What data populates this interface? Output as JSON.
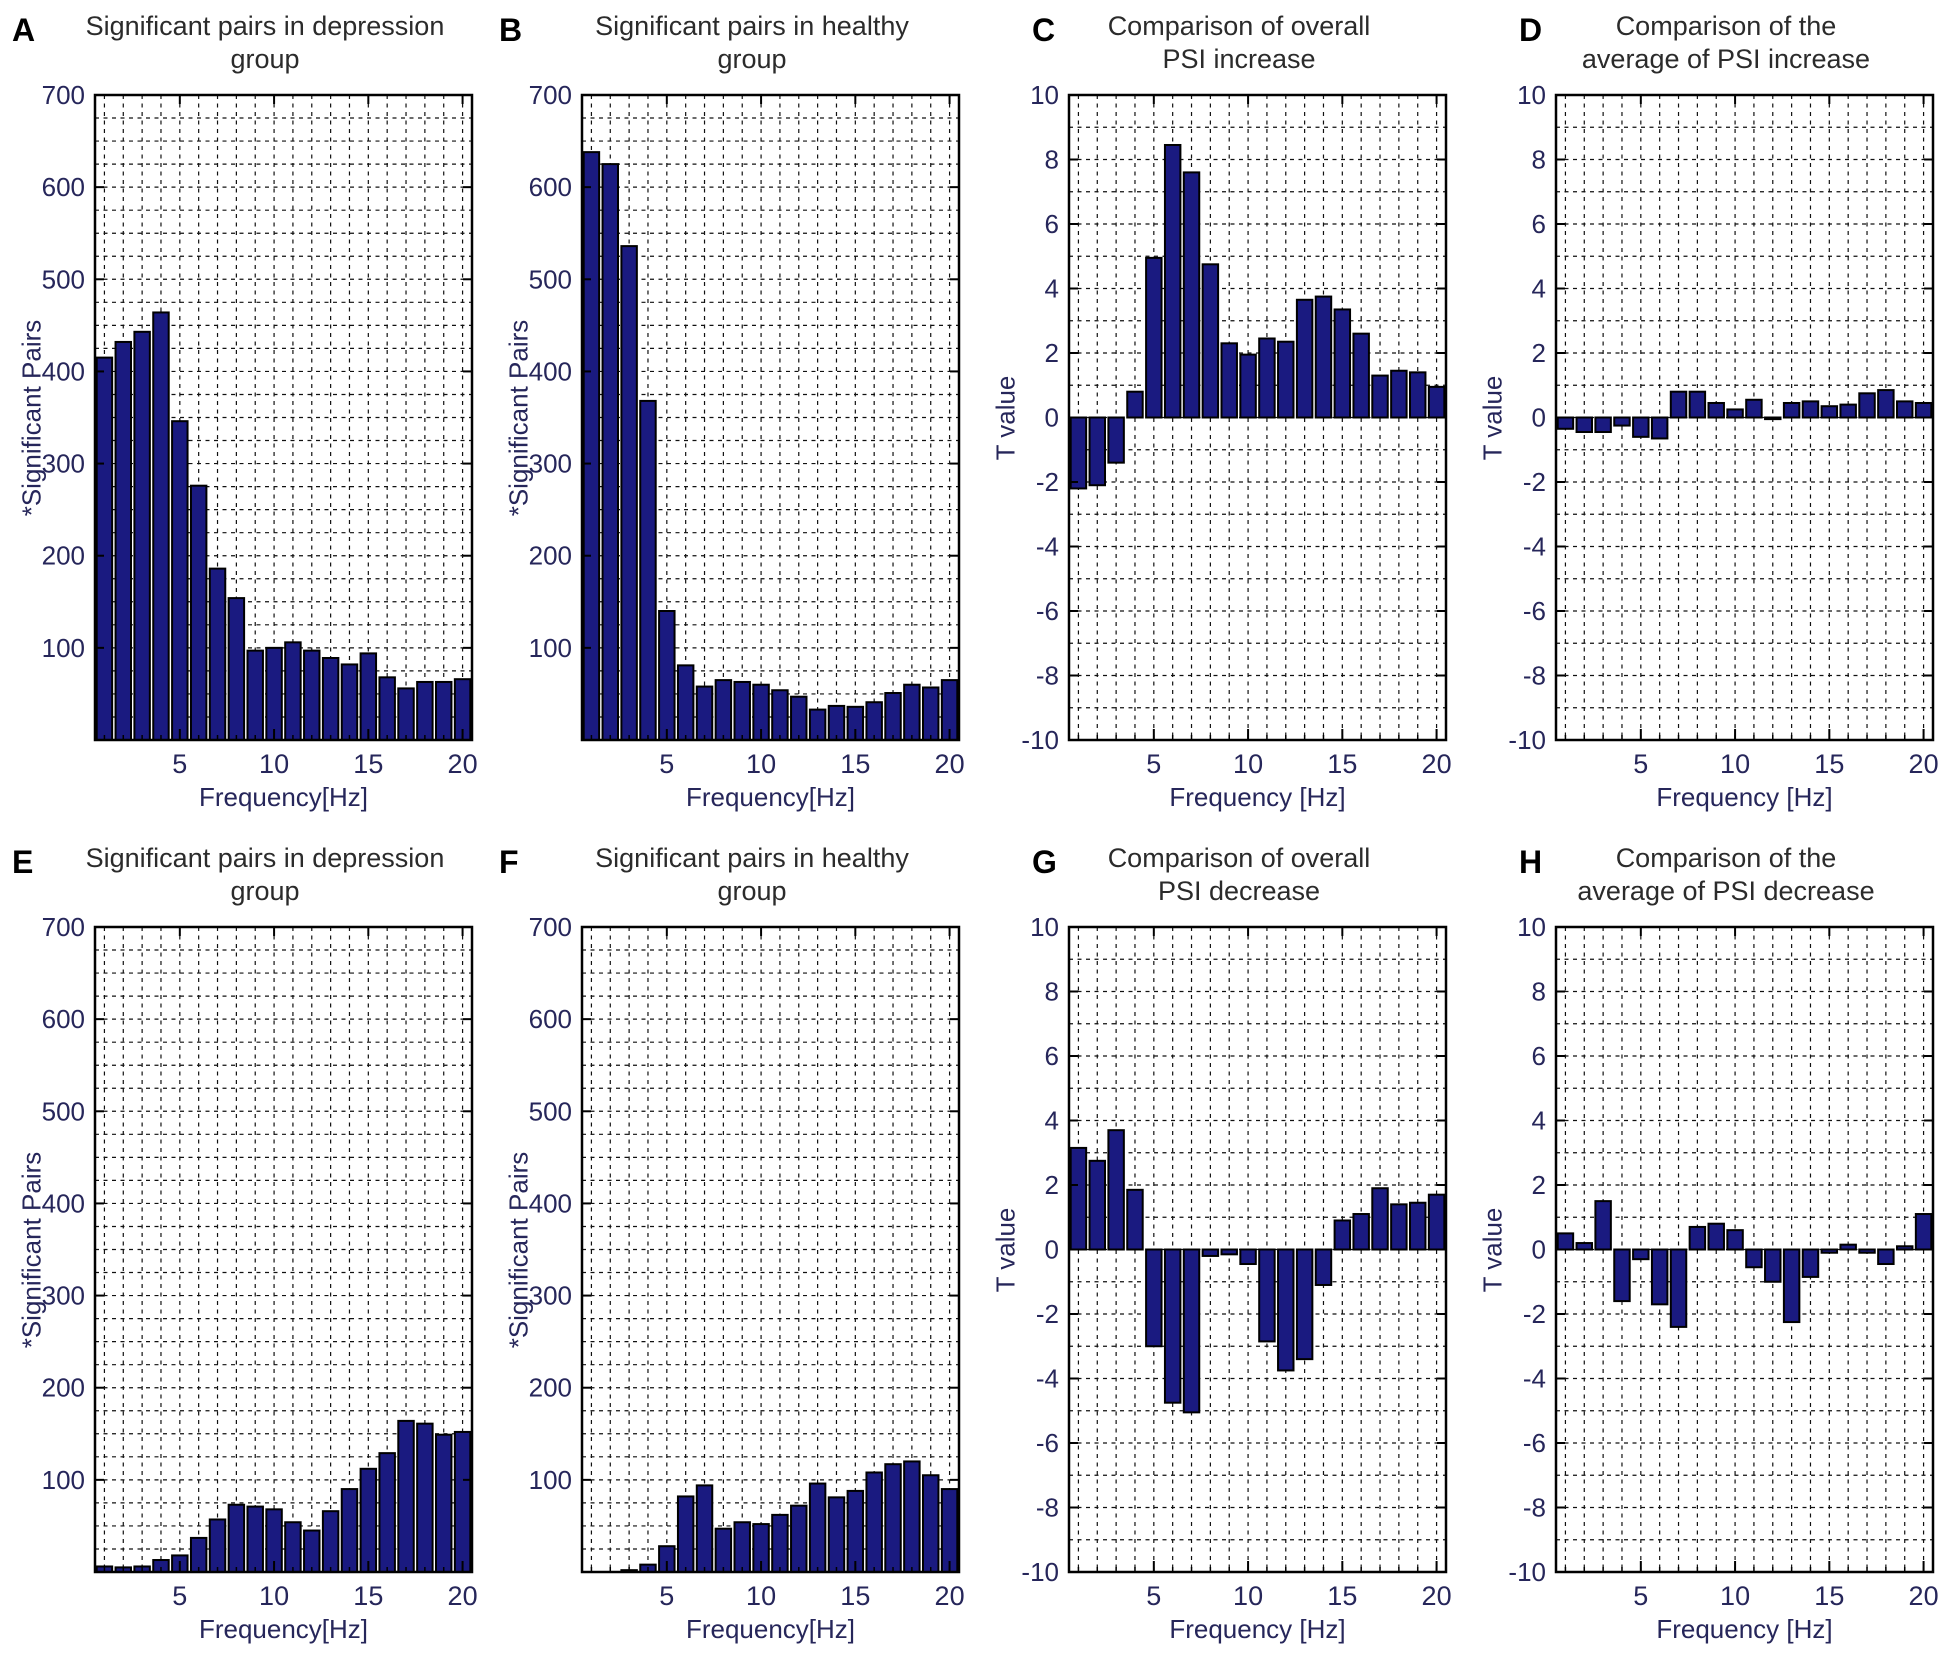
{
  "style": {
    "background": "#ffffff",
    "bar_fill": "#1a1a80",
    "bar_edge": "#000000",
    "grid_color": "#111111",
    "axis_color": "#000000",
    "tick_label_color": "#26265a",
    "title_color": "#2b2b2b",
    "letter_color": "#000000"
  },
  "chart_data": [
    {
      "letter": "A",
      "title_line1": "Significant pairs in depression",
      "title_line2": "group",
      "ylabel": "*Significant Pairs",
      "xlabel": "Frequency[Hz]",
      "type": "bar",
      "x": [
        1,
        2,
        3,
        4,
        5,
        6,
        7,
        8,
        9,
        10,
        11,
        12,
        13,
        14,
        15,
        16,
        17,
        18,
        19,
        20
      ],
      "values": [
        415,
        432,
        443,
        464,
        346,
        276,
        186,
        154,
        97,
        100,
        106,
        97,
        89,
        82,
        94,
        68,
        56,
        63,
        63,
        66
      ],
      "ylim": [
        0,
        700
      ],
      "yticks": [
        100,
        200,
        300,
        400,
        500,
        600,
        700
      ],
      "xticks": [
        5,
        10,
        15,
        20
      ],
      "grid_step": 25,
      "grid": "on",
      "legend": "none"
    },
    {
      "letter": "B",
      "title_line1": "Significant pairs in healthy",
      "title_line2": "group",
      "ylabel": "*Significant Pairs",
      "xlabel": "Frequency[Hz]",
      "type": "bar",
      "x": [
        1,
        2,
        3,
        4,
        5,
        6,
        7,
        8,
        9,
        10,
        11,
        12,
        13,
        14,
        15,
        16,
        17,
        18,
        19,
        20
      ],
      "values": [
        638,
        625,
        536,
        368,
        140,
        81,
        58,
        65,
        63,
        60,
        54,
        47,
        33,
        37,
        36,
        41,
        51,
        60,
        57,
        65
      ],
      "ylim": [
        0,
        700
      ],
      "yticks": [
        100,
        200,
        300,
        400,
        500,
        600,
        700
      ],
      "xticks": [
        5,
        10,
        15,
        20
      ],
      "grid_step": 25,
      "grid": "on",
      "legend": "none"
    },
    {
      "letter": "C",
      "title_line1": "Comparison of overall",
      "title_line2": "PSI increase",
      "ylabel": "T value",
      "xlabel": "Frequency [Hz]",
      "type": "bar",
      "x": [
        1,
        2,
        3,
        4,
        5,
        6,
        7,
        8,
        9,
        10,
        11,
        12,
        13,
        14,
        15,
        16,
        17,
        18,
        19,
        20
      ],
      "values": [
        -2.2,
        -2.1,
        -1.4,
        0.8,
        4.95,
        8.45,
        7.6,
        4.75,
        2.3,
        1.95,
        2.45,
        2.35,
        3.65,
        3.75,
        3.35,
        2.6,
        1.3,
        1.45,
        1.4,
        0.95
      ],
      "ylim": [
        -10,
        10
      ],
      "yticks": [
        -10,
        -8,
        -6,
        -4,
        -2,
        0,
        2,
        4,
        6,
        8,
        10
      ],
      "xticks": [
        5,
        10,
        15,
        20
      ],
      "grid_step": 1,
      "grid": "on",
      "legend": "none"
    },
    {
      "letter": "D",
      "title_line1": "Comparison of the",
      "title_line2": "average of PSI increase",
      "ylabel": "T value",
      "xlabel": "Frequency [Hz]",
      "type": "bar",
      "x": [
        1,
        2,
        3,
        4,
        5,
        6,
        7,
        8,
        9,
        10,
        11,
        12,
        13,
        14,
        15,
        16,
        17,
        18,
        19,
        20
      ],
      "values": [
        -0.35,
        -0.45,
        -0.45,
        -0.25,
        -0.6,
        -0.65,
        0.8,
        0.8,
        0.45,
        0.25,
        0.55,
        -0.05,
        0.45,
        0.5,
        0.35,
        0.4,
        0.75,
        0.85,
        0.5,
        0.45
      ],
      "ylim": [
        -10,
        10
      ],
      "yticks": [
        -10,
        -8,
        -6,
        -4,
        -2,
        0,
        2,
        4,
        6,
        8,
        10
      ],
      "xticks": [
        5,
        10,
        15,
        20
      ],
      "grid_step": 1,
      "grid": "on",
      "legend": "none"
    },
    {
      "letter": "E",
      "title_line1": "Significant pairs in depression",
      "title_line2": "group",
      "ylabel": "*Significant Pairs",
      "xlabel": "Frequency[Hz]",
      "type": "bar",
      "x": [
        1,
        2,
        3,
        4,
        5,
        6,
        7,
        8,
        9,
        10,
        11,
        12,
        13,
        14,
        15,
        16,
        17,
        18,
        19,
        20
      ],
      "values": [
        6,
        5,
        6,
        13,
        18,
        37,
        57,
        73,
        71,
        68,
        54,
        45,
        66,
        90,
        112,
        129,
        164,
        161,
        149,
        152
      ],
      "ylim": [
        0,
        700
      ],
      "yticks": [
        100,
        200,
        300,
        400,
        500,
        600,
        700
      ],
      "xticks": [
        5,
        10,
        15,
        20
      ],
      "grid_step": 25,
      "grid": "on",
      "legend": "none"
    },
    {
      "letter": "F",
      "title_line1": "Significant pairs in healthy",
      "title_line2": "group",
      "ylabel": "*Significant Pairs",
      "xlabel": "Frequency[Hz]",
      "type": "bar",
      "x": [
        1,
        2,
        3,
        4,
        5,
        6,
        7,
        8,
        9,
        10,
        11,
        12,
        13,
        14,
        15,
        16,
        17,
        18,
        19,
        20
      ],
      "values": [
        0,
        0,
        2,
        8,
        28,
        82,
        94,
        47,
        54,
        52,
        62,
        72,
        96,
        81,
        88,
        108,
        117,
        120,
        105,
        90
      ],
      "ylim": [
        0,
        700
      ],
      "yticks": [
        100,
        200,
        300,
        400,
        500,
        600,
        700
      ],
      "xticks": [
        5,
        10,
        15,
        20
      ],
      "grid_step": 25,
      "grid": "on",
      "legend": "none"
    },
    {
      "letter": "G",
      "title_line1": "Comparison of overall",
      "title_line2": "PSI decrease",
      "ylabel": "T value",
      "xlabel": "Frequency [Hz]",
      "type": "bar",
      "x": [
        1,
        2,
        3,
        4,
        5,
        6,
        7,
        8,
        9,
        10,
        11,
        12,
        13,
        14,
        15,
        16,
        17,
        18,
        19,
        20
      ],
      "values": [
        3.15,
        2.75,
        3.7,
        1.85,
        -3.0,
        -4.75,
        -5.05,
        -0.2,
        -0.15,
        -0.45,
        -2.85,
        -3.75,
        -3.4,
        -1.1,
        0.9,
        1.1,
        1.9,
        1.4,
        1.45,
        1.7
      ],
      "ylim": [
        -10,
        10
      ],
      "yticks": [
        -10,
        -8,
        -6,
        -4,
        -2,
        0,
        2,
        4,
        6,
        8,
        10
      ],
      "xticks": [
        5,
        10,
        15,
        20
      ],
      "grid_step": 1,
      "grid": "on",
      "legend": "none"
    },
    {
      "letter": "H",
      "title_line1": "Comparison of the",
      "title_line2": "average of PSI decrease",
      "ylabel": "T value",
      "xlabel": "Frequency [Hz]",
      "type": "bar",
      "x": [
        1,
        2,
        3,
        4,
        5,
        6,
        7,
        8,
        9,
        10,
        11,
        12,
        13,
        14,
        15,
        16,
        17,
        18,
        19,
        20
      ],
      "values": [
        0.5,
        0.2,
        1.5,
        -1.6,
        -0.3,
        -1.7,
        -2.4,
        0.7,
        0.8,
        0.6,
        -0.55,
        -1.0,
        -2.25,
        -0.85,
        -0.1,
        0.15,
        -0.1,
        -0.45,
        0.1,
        1.1
      ],
      "ylim": [
        -10,
        10
      ],
      "yticks": [
        -10,
        -8,
        -6,
        -4,
        -2,
        0,
        2,
        4,
        6,
        8,
        10
      ],
      "xticks": [
        5,
        10,
        15,
        20
      ],
      "grid_step": 1,
      "grid": "on",
      "legend": "none"
    }
  ]
}
